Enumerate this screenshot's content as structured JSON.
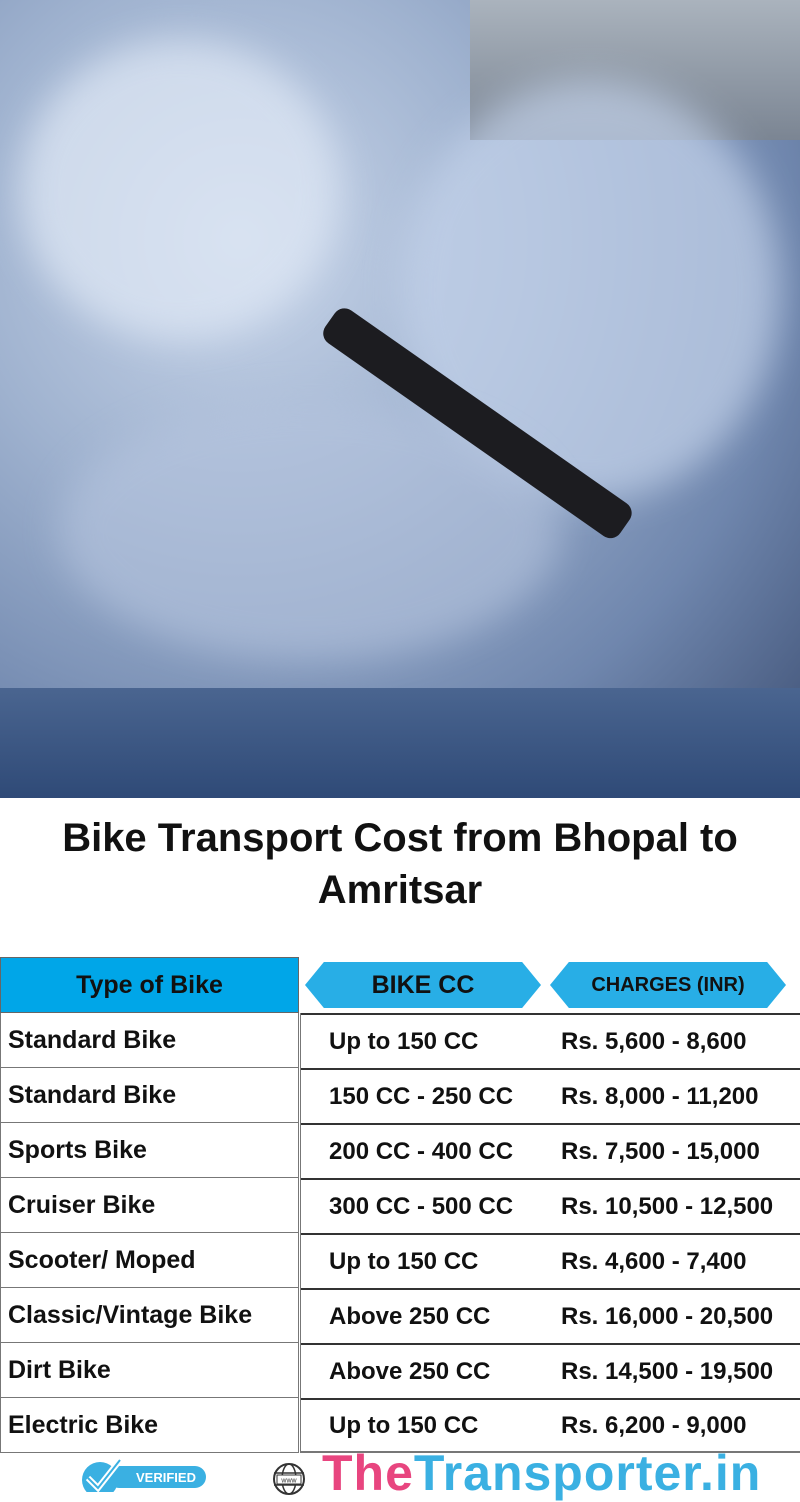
{
  "title": "Bike Transport Cost from Bhopal to Amritsar",
  "table": {
    "headers": [
      "Type of Bike",
      "BIKE CC",
      "CHARGES (INR)"
    ],
    "rows": [
      {
        "type": "Standard Bike",
        "cc": "Up to 150 CC",
        "charges": "Rs. 5,600 - 8,600"
      },
      {
        "type": "Standard Bike",
        "cc": "150 CC - 250 CC",
        "charges": "Rs. 8,000 - 11,200"
      },
      {
        "type": "Sports Bike",
        "cc": "200 CC - 400 CC",
        "charges": "Rs. 7,500 - 15,000"
      },
      {
        "type": "Cruiser Bike",
        "cc": "300 CC - 500 CC",
        "charges": "Rs. 10,500 - 12,500"
      },
      {
        "type": "Scooter/ Moped",
        "cc": "Up to 150 CC",
        "charges": "Rs. 4,600 - 7,400"
      },
      {
        "type": "Classic/Vintage Bike",
        "cc": "Above 250 CC",
        "charges": "Rs. 16,000 - 20,500"
      },
      {
        "type": "Dirt Bike",
        "cc": "Above 250 CC",
        "charges": "Rs. 14,500 - 19,500"
      },
      {
        "type": "Electric Bike",
        "cc": "Up to 150 CC",
        "charges": "Rs. 6,200 - 9,000"
      }
    ]
  },
  "footer": {
    "verified": "VERIFIED",
    "brand_part1": "The",
    "brand_part2": "Transporter.in",
    "globe_text": "www"
  },
  "colors": {
    "header_blue": "#00a6e8",
    "brand_pink": "#e8457f",
    "brand_blue": "#3ab0e2"
  }
}
